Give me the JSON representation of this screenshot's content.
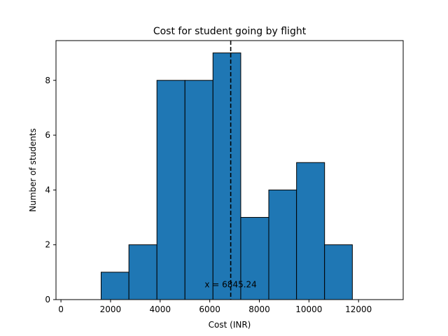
{
  "chart_data": {
    "type": "bar",
    "title": "Cost for student going by flight",
    "xlabel": "Cost (INR)",
    "ylabel": "Number of students",
    "xlim": [
      -200,
      13800
    ],
    "ylim": [
      0,
      9.45
    ],
    "xticks": [
      0,
      2000,
      4000,
      6000,
      8000,
      10000,
      12000
    ],
    "yticks": [
      0,
      2,
      4,
      6,
      8
    ],
    "bins": [
      {
        "x0": 500,
        "x1": 1620,
        "count": 0
      },
      {
        "x0": 1620,
        "x1": 2740,
        "count": 1
      },
      {
        "x0": 2740,
        "x1": 3870,
        "count": 2
      },
      {
        "x0": 3870,
        "x1": 5000,
        "count": 8
      },
      {
        "x0": 5000,
        "x1": 6130,
        "count": 8
      },
      {
        "x0": 6130,
        "x1": 7250,
        "count": 9
      },
      {
        "x0": 7250,
        "x1": 8380,
        "count": 3
      },
      {
        "x0": 8380,
        "x1": 9500,
        "count": 4
      },
      {
        "x0": 9500,
        "x1": 10630,
        "count": 5
      },
      {
        "x0": 10630,
        "x1": 11750,
        "count": 2
      },
      {
        "x0": 11750,
        "x1": 12880,
        "count": 0
      }
    ],
    "vline": {
      "x": 6845.24,
      "style": "dashed",
      "color": "#000000"
    },
    "annotation": {
      "text": "x = 6845.24",
      "x": 6845.24,
      "y": 0.55
    },
    "colors": {
      "bar": "#1f77b4",
      "edge": "#000000"
    },
    "grid": false
  }
}
